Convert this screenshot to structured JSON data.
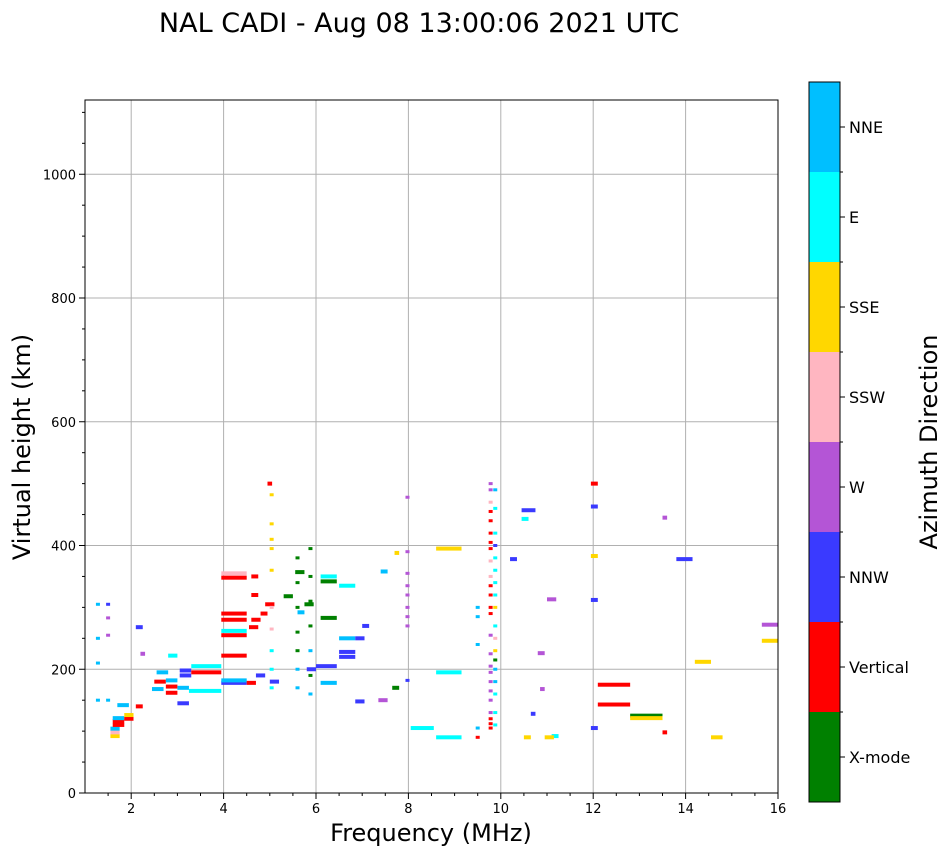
{
  "chart_data": {
    "type": "scatter",
    "title": "NAL CADI - Aug 08 13:00:06 2021 UTC",
    "xlabel": "Frequency (MHz)",
    "ylabel": "Virtual height (km)",
    "xlim": [
      1.0,
      16.0
    ],
    "ylim": [
      0,
      1120
    ],
    "xticks": [
      2,
      4,
      6,
      8,
      10,
      12,
      14,
      16
    ],
    "yticks": [
      0,
      200,
      400,
      600,
      800,
      1000
    ],
    "grid": true,
    "colorbar": {
      "label": "Azimuth Direction",
      "categories": [
        {
          "name": "X-mode",
          "color": "#008000"
        },
        {
          "name": "Vertical",
          "color": "#ff0000"
        },
        {
          "name": "NNW",
          "color": "#3a3aff"
        },
        {
          "name": "W",
          "color": "#b455d6"
        },
        {
          "name": "SSW",
          "color": "#ffb6c1"
        },
        {
          "name": "SSE",
          "color": "#ffd700"
        },
        {
          "name": "E",
          "color": "#00ffff"
        },
        {
          "name": "NNE",
          "color": "#00bfff"
        }
      ]
    },
    "echoes": [
      {
        "f0": 1.55,
        "f1": 1.75,
        "h": 92,
        "dir": "SSE"
      },
      {
        "f0": 1.55,
        "f1": 1.75,
        "h": 98,
        "dir": "SSW"
      },
      {
        "f0": 1.55,
        "f1": 1.75,
        "h": 104,
        "dir": "NNE"
      },
      {
        "f0": 1.6,
        "f1": 1.85,
        "h": 110,
        "dir": "Vertical"
      },
      {
        "f0": 1.6,
        "f1": 1.85,
        "h": 116,
        "dir": "Vertical"
      },
      {
        "f0": 1.6,
        "f1": 1.85,
        "h": 121,
        "dir": "NNE"
      },
      {
        "f0": 1.85,
        "f1": 2.05,
        "h": 120,
        "dir": "Vertical"
      },
      {
        "f0": 1.85,
        "f1": 2.05,
        "h": 126,
        "dir": "SSE"
      },
      {
        "f0": 1.7,
        "f1": 1.95,
        "h": 142,
        "dir": "NNE"
      },
      {
        "f0": 2.1,
        "f1": 2.25,
        "h": 140,
        "dir": "Vertical"
      },
      {
        "f0": 2.2,
        "f1": 2.3,
        "h": 225,
        "dir": "W"
      },
      {
        "f0": 2.1,
        "f1": 2.25,
        "h": 268,
        "dir": "NNW"
      },
      {
        "f0": 2.45,
        "f1": 2.7,
        "h": 168,
        "dir": "NNE"
      },
      {
        "f0": 2.5,
        "f1": 2.75,
        "h": 180,
        "dir": "Vertical"
      },
      {
        "f0": 2.55,
        "f1": 2.8,
        "h": 195,
        "dir": "NNE"
      },
      {
        "f0": 2.75,
        "f1": 3.0,
        "h": 162,
        "dir": "Vertical"
      },
      {
        "f0": 2.75,
        "f1": 3.0,
        "h": 172,
        "dir": "Vertical"
      },
      {
        "f0": 2.75,
        "f1": 3.0,
        "h": 182,
        "dir": "NNE"
      },
      {
        "f0": 2.8,
        "f1": 3.0,
        "h": 222,
        "dir": "E"
      },
      {
        "f0": 3.0,
        "f1": 3.25,
        "h": 145,
        "dir": "NNW"
      },
      {
        "f0": 3.0,
        "f1": 3.25,
        "h": 170,
        "dir": "NNE"
      },
      {
        "f0": 3.05,
        "f1": 3.3,
        "h": 190,
        "dir": "NNW"
      },
      {
        "f0": 3.05,
        "f1": 3.3,
        "h": 198,
        "dir": "NNW"
      },
      {
        "f0": 3.25,
        "f1": 3.95,
        "h": 165,
        "dir": "E"
      },
      {
        "f0": 3.3,
        "f1": 3.95,
        "h": 205,
        "dir": "E"
      },
      {
        "f0": 3.3,
        "f1": 3.95,
        "h": 195,
        "dir": "Vertical"
      },
      {
        "f0": 3.95,
        "f1": 4.5,
        "h": 178,
        "dir": "NNW"
      },
      {
        "f0": 3.95,
        "f1": 4.5,
        "h": 182,
        "dir": "NNE"
      },
      {
        "f0": 3.95,
        "f1": 4.5,
        "h": 222,
        "dir": "Vertical"
      },
      {
        "f0": 3.95,
        "f1": 4.5,
        "h": 255,
        "dir": "Vertical"
      },
      {
        "f0": 3.95,
        "f1": 4.5,
        "h": 262,
        "dir": "E"
      },
      {
        "f0": 3.95,
        "f1": 4.5,
        "h": 280,
        "dir": "Vertical"
      },
      {
        "f0": 3.95,
        "f1": 4.5,
        "h": 290,
        "dir": "Vertical"
      },
      {
        "f0": 3.95,
        "f1": 4.5,
        "h": 348,
        "dir": "Vertical"
      },
      {
        "f0": 3.95,
        "f1": 4.5,
        "h": 355,
        "dir": "SSW"
      },
      {
        "f0": 4.5,
        "f1": 4.7,
        "h": 178,
        "dir": "Vertical"
      },
      {
        "f0": 4.55,
        "f1": 4.75,
        "h": 268,
        "dir": "Vertical"
      },
      {
        "f0": 4.6,
        "f1": 4.8,
        "h": 280,
        "dir": "Vertical"
      },
      {
        "f0": 4.8,
        "f1": 4.95,
        "h": 290,
        "dir": "Vertical"
      },
      {
        "f0": 4.9,
        "f1": 5.1,
        "h": 305,
        "dir": "Vertical"
      },
      {
        "f0": 4.6,
        "f1": 4.75,
        "h": 320,
        "dir": "Vertical"
      },
      {
        "f0": 4.6,
        "f1": 4.75,
        "h": 350,
        "dir": "Vertical"
      },
      {
        "f0": 4.95,
        "f1": 5.05,
        "h": 500,
        "dir": "Vertical"
      },
      {
        "f0": 4.7,
        "f1": 4.9,
        "h": 190,
        "dir": "NNW"
      },
      {
        "f0": 5.0,
        "f1": 5.2,
        "h": 180,
        "dir": "NNW"
      },
      {
        "f0": 5.3,
        "f1": 5.5,
        "h": 318,
        "dir": "X-mode"
      },
      {
        "f0": 5.55,
        "f1": 5.75,
        "h": 357,
        "dir": "X-mode"
      },
      {
        "f0": 5.6,
        "f1": 5.75,
        "h": 292,
        "dir": "NNE"
      },
      {
        "f0": 5.75,
        "f1": 5.95,
        "h": 305,
        "dir": "X-mode"
      },
      {
        "f0": 5.8,
        "f1": 6.0,
        "h": 200,
        "dir": "NNW"
      },
      {
        "f0": 6.0,
        "f1": 6.45,
        "h": 205,
        "dir": "NNW"
      },
      {
        "f0": 6.1,
        "f1": 6.45,
        "h": 283,
        "dir": "X-mode"
      },
      {
        "f0": 6.1,
        "f1": 6.45,
        "h": 342,
        "dir": "X-mode"
      },
      {
        "f0": 6.1,
        "f1": 6.45,
        "h": 350,
        "dir": "E"
      },
      {
        "f0": 6.1,
        "f1": 6.45,
        "h": 178,
        "dir": "NNE"
      },
      {
        "f0": 6.5,
        "f1": 6.85,
        "h": 335,
        "dir": "E"
      },
      {
        "f0": 6.5,
        "f1": 6.85,
        "h": 250,
        "dir": "NNE"
      },
      {
        "f0": 6.5,
        "f1": 6.85,
        "h": 228,
        "dir": "NNW"
      },
      {
        "f0": 6.5,
        "f1": 6.85,
        "h": 220,
        "dir": "NNW"
      },
      {
        "f0": 6.85,
        "f1": 7.05,
        "h": 250,
        "dir": "NNW"
      },
      {
        "f0": 6.85,
        "f1": 7.05,
        "h": 148,
        "dir": "NNW"
      },
      {
        "f0": 7.0,
        "f1": 7.15,
        "h": 270,
        "dir": "NNW"
      },
      {
        "f0": 7.4,
        "f1": 7.55,
        "h": 358,
        "dir": "NNE"
      },
      {
        "f0": 7.35,
        "f1": 7.55,
        "h": 150,
        "dir": "W"
      },
      {
        "f0": 7.65,
        "f1": 7.8,
        "h": 170,
        "dir": "X-mode"
      },
      {
        "f0": 7.7,
        "f1": 7.8,
        "h": 388,
        "dir": "SSE"
      },
      {
        "f0": 8.05,
        "f1": 8.55,
        "h": 105,
        "dir": "E"
      },
      {
        "f0": 8.6,
        "f1": 9.15,
        "h": 90,
        "dir": "E"
      },
      {
        "f0": 8.6,
        "f1": 9.15,
        "h": 195,
        "dir": "E"
      },
      {
        "f0": 8.6,
        "f1": 9.15,
        "h": 395,
        "dir": "SSE"
      },
      {
        "f0": 10.45,
        "f1": 10.75,
        "h": 457,
        "dir": "NNW"
      },
      {
        "f0": 10.2,
        "f1": 10.35,
        "h": 378,
        "dir": "NNW"
      },
      {
        "f0": 10.45,
        "f1": 10.6,
        "h": 443,
        "dir": "E"
      },
      {
        "f0": 11.0,
        "f1": 11.2,
        "h": 313,
        "dir": "W"
      },
      {
        "f0": 11.1,
        "f1": 11.25,
        "h": 92,
        "dir": "E"
      },
      {
        "f0": 10.95,
        "f1": 11.15,
        "h": 90,
        "dir": "SSE"
      },
      {
        "f0": 10.5,
        "f1": 10.65,
        "h": 90,
        "dir": "SSE"
      },
      {
        "f0": 10.65,
        "f1": 10.75,
        "h": 128,
        "dir": "NNW"
      },
      {
        "f0": 10.8,
        "f1": 10.95,
        "h": 226,
        "dir": "W"
      },
      {
        "f0": 10.85,
        "f1": 10.95,
        "h": 168,
        "dir": "W"
      },
      {
        "f0": 11.95,
        "f1": 12.1,
        "h": 500,
        "dir": "Vertical"
      },
      {
        "f0": 11.95,
        "f1": 12.1,
        "h": 383,
        "dir": "SSE"
      },
      {
        "f0": 11.95,
        "f1": 12.1,
        "h": 312,
        "dir": "NNW"
      },
      {
        "f0": 11.95,
        "f1": 12.1,
        "h": 463,
        "dir": "NNW"
      },
      {
        "f0": 12.1,
        "f1": 12.8,
        "h": 175,
        "dir": "Vertical"
      },
      {
        "f0": 12.1,
        "f1": 12.8,
        "h": 143,
        "dir": "Vertical"
      },
      {
        "f0": 11.95,
        "f1": 12.1,
        "h": 105,
        "dir": "NNW"
      },
      {
        "f0": 12.8,
        "f1": 13.5,
        "h": 125,
        "dir": "X-mode"
      },
      {
        "f0": 12.8,
        "f1": 13.5,
        "h": 121,
        "dir": "SSE"
      },
      {
        "f0": 13.5,
        "f1": 13.6,
        "h": 445,
        "dir": "W"
      },
      {
        "f0": 13.5,
        "f1": 13.6,
        "h": 98,
        "dir": "Vertical"
      },
      {
        "f0": 13.8,
        "f1": 14.15,
        "h": 378,
        "dir": "NNW"
      },
      {
        "f0": 14.2,
        "f1": 14.55,
        "h": 212,
        "dir": "SSE"
      },
      {
        "f0": 14.55,
        "f1": 14.8,
        "h": 90,
        "dir": "SSE"
      },
      {
        "f0": 15.65,
        "f1": 16.0,
        "h": 272,
        "dir": "W"
      },
      {
        "f0": 15.65,
        "f1": 16.0,
        "h": 246,
        "dir": "SSE"
      }
    ],
    "columns": [
      {
        "f": 9.78,
        "hs": [
          105,
          112,
          120,
          130,
          150,
          165,
          180,
          195,
          205,
          225,
          255,
          290,
          300,
          320,
          335,
          350,
          375,
          395,
          405,
          420,
          440,
          455,
          470,
          490,
          500
        ],
        "dirs": [
          "Vertical",
          "Vertical",
          "Vertical",
          "W",
          "W",
          "W",
          "W",
          "W",
          "W",
          "W",
          "W",
          "Vertical",
          "Vertical",
          "Vertical",
          "Vertical",
          "SSW",
          "SSW",
          "Vertical",
          "Vertical",
          "Vertical",
          "Vertical",
          "Vertical",
          "SSW",
          "W",
          "W"
        ]
      },
      {
        "f": 9.88,
        "hs": [
          110,
          130,
          160,
          180,
          200,
          215,
          230,
          250,
          270,
          300,
          320,
          340,
          360,
          380,
          400,
          420,
          460,
          490
        ],
        "dirs": [
          "E",
          "E",
          "E",
          "NNE",
          "NNE",
          "X-mode",
          "SSE",
          "SSW",
          "E",
          "SSE",
          "E",
          "E",
          "E",
          "E",
          "NNW",
          "E",
          "E",
          "NNE"
        ]
      },
      {
        "f": 7.98,
        "hs": [
          182,
          270,
          285,
          300,
          320,
          335,
          355,
          390,
          478
        ],
        "dirs": [
          "NNW",
          "W",
          "W",
          "W",
          "W",
          "W",
          "W",
          "W",
          "W"
        ]
      },
      {
        "f": 5.04,
        "hs": [
          170,
          200,
          230,
          265,
          300,
          360,
          395,
          410,
          435,
          482
        ],
        "dirs": [
          "E",
          "E",
          "E",
          "SSW",
          "SSW",
          "SSE",
          "SSE",
          "SSE",
          "SSE",
          "SSE"
        ]
      },
      {
        "f": 5.6,
        "hs": [
          170,
          200,
          230,
          260,
          300,
          340,
          380
        ],
        "dirs": [
          "NNE",
          "NNE",
          "X-mode",
          "X-mode",
          "X-mode",
          "X-mode",
          "X-mode"
        ]
      },
      {
        "f": 5.88,
        "hs": [
          160,
          190,
          230,
          270,
          310,
          350,
          395
        ],
        "dirs": [
          "NNE",
          "X-mode",
          "NNE",
          "X-mode",
          "X-mode",
          "X-mode",
          "X-mode"
        ]
      },
      {
        "f": 9.5,
        "hs": [
          90,
          105,
          240,
          285,
          300
        ],
        "dirs": [
          "Vertical",
          "NNE",
          "NNE",
          "NNE",
          "NNE"
        ]
      },
      {
        "f": 1.28,
        "hs": [
          150,
          210,
          250,
          305
        ],
        "dirs": [
          "NNE",
          "NNE",
          "NNE",
          "NNE"
        ]
      },
      {
        "f": 1.5,
        "hs": [
          150,
          255,
          283,
          305
        ],
        "dirs": [
          "NNE",
          "W",
          "W",
          "NNW"
        ]
      }
    ]
  }
}
